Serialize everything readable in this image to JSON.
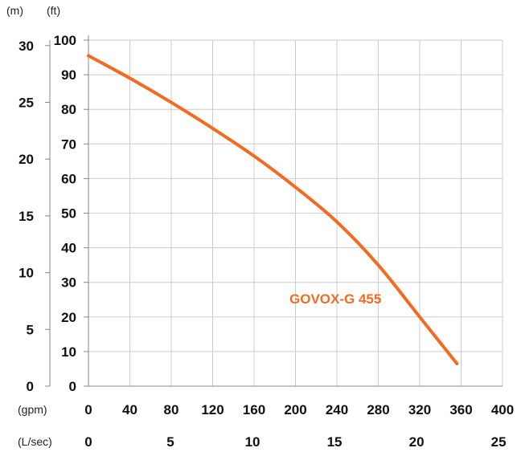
{
  "chart_data": {
    "type": "line",
    "title": "",
    "units": {
      "left_m": "(m)",
      "left_ft": "(ft)",
      "bottom_gpm": "(gpm)",
      "bottom_lsec": "(L/sec)"
    },
    "y_ft": {
      "ticks": [
        "0",
        "10",
        "20",
        "30",
        "40",
        "50",
        "60",
        "70",
        "80",
        "90",
        "100"
      ],
      "range": [
        0,
        100
      ]
    },
    "y_m": {
      "ticks": [
        "0",
        "5",
        "10",
        "15",
        "20",
        "25",
        "30"
      ],
      "range": [
        0,
        30.48
      ]
    },
    "x_gpm": {
      "ticks": [
        "0",
        "40",
        "80",
        "120",
        "160",
        "200",
        "240",
        "280",
        "320",
        "360",
        "400"
      ],
      "range": [
        0,
        400
      ]
    },
    "x_lsec": {
      "ticks": [
        "0",
        "5",
        "10",
        "15",
        "20",
        "25"
      ],
      "range": [
        0,
        25.24
      ]
    },
    "grid": true,
    "series": [
      {
        "name": "GOVOX-G 455",
        "color": "#f26b21",
        "x_unit": "gpm",
        "y_unit": "ft",
        "x": [
          0,
          40,
          80,
          120,
          160,
          200,
          240,
          280,
          320,
          356
        ],
        "y": [
          95.5,
          89,
          82,
          74.5,
          66.5,
          57.5,
          47.5,
          35,
          20,
          6.5
        ]
      }
    ]
  }
}
